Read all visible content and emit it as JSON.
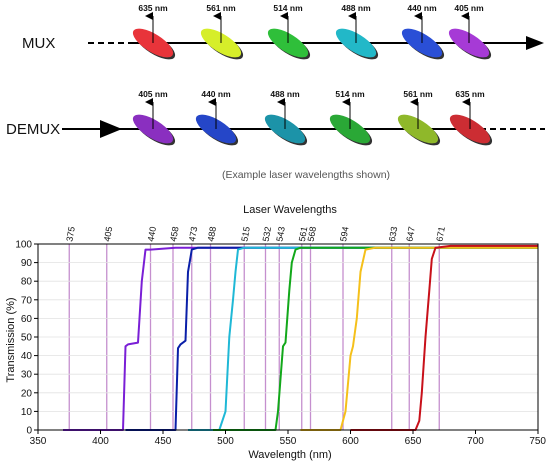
{
  "mux": {
    "label": "MUX",
    "filters": [
      {
        "wavelength": "635 nm",
        "color": "#e8343a"
      },
      {
        "wavelength": "561 nm",
        "color": "#d6ee2a"
      },
      {
        "wavelength": "514 nm",
        "color": "#2fbf3a"
      },
      {
        "wavelength": "488 nm",
        "color": "#22b8c8"
      },
      {
        "wavelength": "440 nm",
        "color": "#2a4fd6"
      },
      {
        "wavelength": "405 nm",
        "color": "#a63ad6"
      }
    ]
  },
  "demux": {
    "label": "DEMUX",
    "filters": [
      {
        "wavelength": "405 nm",
        "color": "#8a2fc0"
      },
      {
        "wavelength": "440 nm",
        "color": "#2546c8"
      },
      {
        "wavelength": "488 nm",
        "color": "#1c93a8"
      },
      {
        "wavelength": "514 nm",
        "color": "#2aa836"
      },
      {
        "wavelength": "561 nm",
        "color": "#8fb82a"
      },
      {
        "wavelength": "635 nm",
        "color": "#cc2d33"
      }
    ]
  },
  "caption": "(Example laser wavelengths shown)",
  "chart_data": {
    "type": "line",
    "title": "Laser Wavelengths",
    "xlabel": "Wavelength (nm)",
    "ylabel": "Transmission (%)",
    "xlim": [
      350,
      750
    ],
    "ylim": [
      0,
      100
    ],
    "xticks": [
      350,
      400,
      450,
      500,
      550,
      600,
      650,
      700,
      750
    ],
    "yticks": [
      0,
      10,
      20,
      30,
      40,
      50,
      60,
      70,
      80,
      90,
      100
    ],
    "laser_lines": [
      "375",
      "405",
      "440",
      "458",
      "473",
      "488",
      "515",
      "532",
      "543",
      "561",
      "568",
      "594",
      "633",
      "647",
      "671"
    ],
    "laser_line_color": "#c58fce",
    "series": [
      {
        "color": "#7a1fd6",
        "x": [
          370,
          418,
          420,
          422,
          430,
          433,
          436,
          440,
          460,
          750
        ],
        "y": [
          0,
          0,
          45,
          46,
          47,
          80,
          97,
          97,
          98,
          98
        ]
      },
      {
        "color": "#0a1fa8",
        "x": [
          420,
          460,
          462,
          464,
          468,
          470,
          473,
          478,
          490,
          750
        ],
        "y": [
          0,
          0,
          44,
          46,
          48,
          85,
          97,
          98,
          98,
          98
        ]
      },
      {
        "color": "#1fb8d6",
        "x": [
          470,
          495,
          500,
          503,
          506,
          508,
          510,
          515,
          750
        ],
        "y": [
          0,
          0,
          10,
          50,
          70,
          85,
          97,
          98,
          98
        ]
      },
      {
        "color": "#12a81a",
        "x": [
          490,
          540,
          542,
          546,
          548,
          551,
          553,
          556,
          560,
          750
        ],
        "y": [
          0,
          0,
          10,
          45,
          47,
          75,
          90,
          97,
          98,
          98
        ]
      },
      {
        "color": "#f5c01a",
        "x": [
          560,
          592,
          596,
          600,
          602,
          605,
          608,
          612,
          620,
          750
        ],
        "y": [
          0,
          0,
          10,
          40,
          45,
          60,
          85,
          97,
          98,
          98
        ]
      },
      {
        "color": "#c8101a",
        "x": [
          600,
          652,
          655,
          657,
          660,
          663,
          665,
          668,
          680,
          750
        ],
        "y": [
          0,
          0,
          5,
          20,
          50,
          75,
          92,
          98,
          99,
          99
        ]
      }
    ]
  }
}
